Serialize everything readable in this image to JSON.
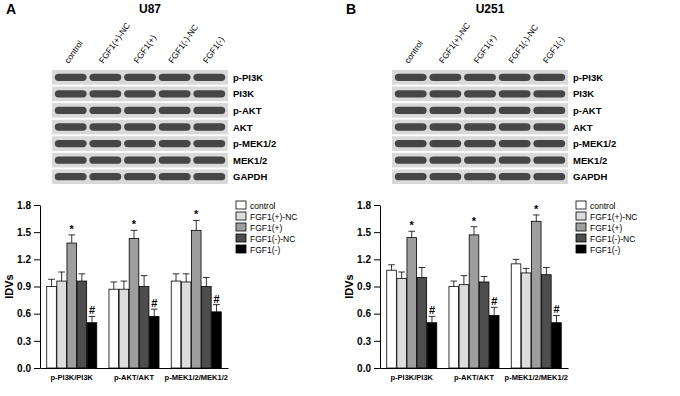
{
  "chart_data": [
    {
      "type": "bar",
      "panel": "A",
      "title": "U87",
      "blot": {
        "lanes": [
          "control",
          "FGF1(+)-NC",
          "FGF1(+)",
          "FGF1(-)-NC",
          "FGF1(-)"
        ],
        "bands": [
          "p-PI3K",
          "PI3K",
          "p-AKT",
          "AKT",
          "p-MEK1/2",
          "MEK1/2",
          "GAPDH"
        ]
      },
      "categories": [
        "p-PI3K/PI3K",
        "p-AKT/AKT",
        "p-MEK1/2/MEK1/2"
      ],
      "y_label": "IDVs",
      "ylim": [
        0,
        1.8
      ],
      "yticks": [
        {
          "value": 0,
          "label": "0.0"
        },
        0.3,
        0.6,
        0.9,
        1.2,
        1.5,
        1.8
      ],
      "legend": "upper right",
      "series": [
        {
          "name": "control",
          "color": "#ffffff",
          "values": [
            0.9,
            0.87,
            0.96
          ],
          "errors": [
            0.08,
            0.08,
            0.08
          ]
        },
        {
          "name": "FGF1(+)-NC",
          "color": "#dcdcdc",
          "values": [
            0.96,
            0.87,
            0.95
          ],
          "errors": [
            0.1,
            0.09,
            0.09
          ]
        },
        {
          "name": "FGF1(+)",
          "color": "#9e9e9e",
          "values": [
            1.38,
            1.43,
            1.52
          ],
          "errors": [
            0.09,
            0.09,
            0.11
          ],
          "annotation": "*"
        },
        {
          "name": "FGF1(-)-NC",
          "color": "#4d4d4d",
          "values": [
            0.96,
            0.9,
            0.9
          ],
          "errors": [
            0.08,
            0.12,
            0.1
          ]
        },
        {
          "name": "FGF1(-)",
          "color": "#000000",
          "values": [
            0.5,
            0.57,
            0.62
          ],
          "errors": [
            0.07,
            0.08,
            0.08
          ],
          "annotation": "#"
        }
      ]
    },
    {
      "type": "bar",
      "panel": "B",
      "title": "U251",
      "blot": {
        "lanes": [
          "control",
          "FGF1(+)-NC",
          "FGF1(+)",
          "FGF1(-)-NC",
          "FGF1(-)"
        ],
        "bands": [
          "p-PI3K",
          "PI3K",
          "p-AKT",
          "AKT",
          "p-MEK1/2",
          "MEK1/2",
          "GAPDH"
        ]
      },
      "categories": [
        "p-PI3K/PI3K",
        "p-AKT/AKT",
        "p-MEK1/2/MEK1/2"
      ],
      "y_label": "IDVs",
      "ylim": [
        0,
        1.8
      ],
      "yticks": [
        {
          "value": 0,
          "label": "0.0"
        },
        0.3,
        0.6,
        0.9,
        1.2,
        1.5,
        1.8
      ],
      "legend": "upper right",
      "series": [
        {
          "name": "control",
          "color": "#ffffff",
          "values": [
            1.08,
            0.9,
            1.15
          ],
          "errors": [
            0.06,
            0.06,
            0.05
          ]
        },
        {
          "name": "FGF1(+)-NC",
          "color": "#dcdcdc",
          "values": [
            0.99,
            0.92,
            1.05
          ],
          "errors": [
            0.07,
            0.1,
            0.05
          ]
        },
        {
          "name": "FGF1(+)",
          "color": "#9e9e9e",
          "values": [
            1.44,
            1.47,
            1.62
          ],
          "errors": [
            0.07,
            0.09,
            0.07
          ],
          "annotation": "*"
        },
        {
          "name": "FGF1(-)-NC",
          "color": "#4d4d4d",
          "values": [
            1.0,
            0.95,
            1.03
          ],
          "errors": [
            0.11,
            0.06,
            0.08
          ]
        },
        {
          "name": "FGF1(-)",
          "color": "#000000",
          "values": [
            0.5,
            0.58,
            0.5
          ],
          "errors": [
            0.07,
            0.09,
            0.08
          ],
          "annotation": "#"
        }
      ]
    }
  ]
}
